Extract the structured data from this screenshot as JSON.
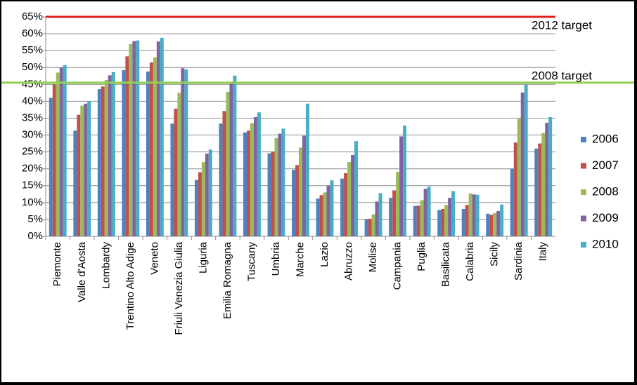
{
  "chart_data": {
    "type": "bar",
    "categories": [
      "Piemonte",
      "Valle d'Aosta",
      "Lombardy",
      "Trentino Alto Adige",
      "Veneto",
      "Friuli Venezia Giulia",
      "Liguria",
      "Emilia Romagna",
      "Tuscany",
      "Umbria",
      "Marche",
      "Lazio",
      "Abruzzo",
      "Molise",
      "Campania",
      "Puglia",
      "Basilicata",
      "Calabria",
      "Sicily",
      "Sardinia",
      "Italy"
    ],
    "series": [
      {
        "name": "2006",
        "color": "#4f81bd",
        "values": [
          41,
          31.3,
          43.6,
          49.2,
          48.8,
          33.4,
          16.7,
          33.4,
          30.8,
          24.6,
          19.7,
          11.2,
          17.1,
          5.1,
          11.4,
          9,
          7.8,
          8.1,
          6.7,
          20,
          26
        ]
      },
      {
        "name": "2007",
        "color": "#c0504d",
        "values": [
          45,
          36,
          44.4,
          53.3,
          51.5,
          37.8,
          19,
          37.1,
          31.3,
          25.1,
          21.1,
          12.2,
          18.7,
          5.2,
          13.6,
          9.1,
          8.1,
          9.3,
          6.4,
          27.8,
          27.5
        ]
      },
      {
        "name": "2008",
        "color": "#9bbb59",
        "values": [
          48.5,
          38.7,
          46.3,
          56.9,
          53,
          42.5,
          22,
          42.8,
          33.5,
          29.1,
          26.3,
          13,
          22,
          6.5,
          19.1,
          10.7,
          9.3,
          12.7,
          6.9,
          34.8,
          30.6
        ]
      },
      {
        "name": "2009",
        "color": "#8064a2",
        "values": [
          50,
          39.3,
          47.7,
          57.8,
          57.7,
          49.8,
          24.5,
          45.3,
          35.3,
          30.4,
          29.8,
          15,
          24.1,
          10.3,
          29.6,
          14.1,
          11.4,
          12.4,
          7.5,
          42.6,
          33.6
        ]
      },
      {
        "name": "2010",
        "color": "#4bacc6",
        "values": [
          50.7,
          40,
          48.6,
          58,
          58.8,
          49.4,
          25.7,
          47.6,
          36.7,
          31.9,
          39.3,
          16.6,
          28.2,
          12.8,
          32.8,
          14.7,
          13.4,
          12.3,
          9.4,
          44.9,
          35.3
        ]
      }
    ],
    "reference_lines": [
      {
        "label": "2012 target",
        "value": 65,
        "color": "#e02020"
      },
      {
        "label": "2008 target",
        "value": 45.5,
        "color": "#92d050"
      }
    ],
    "ylim": [
      0,
      65
    ],
    "yticks": [
      {
        "value": 0,
        "label": "0%"
      },
      {
        "value": 5,
        "label": "5%"
      },
      {
        "value": 10,
        "label": "10%"
      },
      {
        "value": 15,
        "label": "15%"
      },
      {
        "value": 20,
        "label": "20%"
      },
      {
        "value": 25,
        "label": "25%"
      },
      {
        "value": 30,
        "label": "30%"
      },
      {
        "value": 35,
        "label": "35%"
      },
      {
        "value": 40,
        "label": "40%"
      },
      {
        "value": 45,
        "label": "45%"
      },
      {
        "value": 50,
        "label": "50%"
      },
      {
        "value": 55,
        "label": "55%"
      },
      {
        "value": 60,
        "label": "60%"
      },
      {
        "value": 65,
        "label": "65%"
      }
    ],
    "grid": true,
    "legend": "right"
  }
}
